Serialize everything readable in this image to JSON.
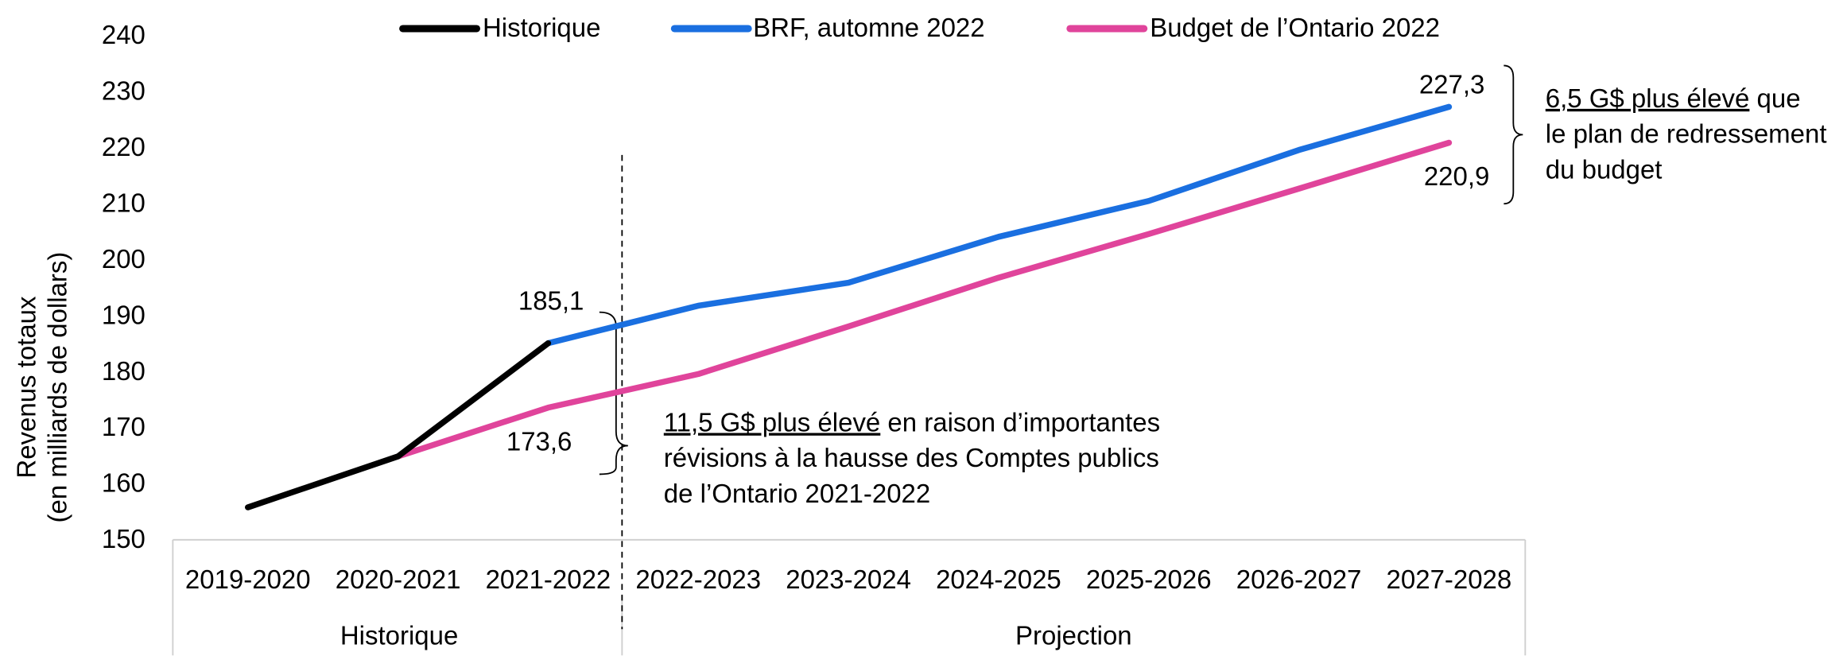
{
  "chart_data": {
    "type": "line",
    "categories": [
      "2019-2020",
      "2020-2021",
      "2021-2022",
      "2022-2023",
      "2023-2024",
      "2024-2025",
      "2025-2026",
      "2026-2027",
      "2027-2028"
    ],
    "category_groups": [
      "Historique",
      "Projection"
    ],
    "y_label": [
      "Revenus totaux",
      "(en milliards de dollars)"
    ],
    "ylim": [
      150,
      240
    ],
    "yticks": [
      150,
      160,
      170,
      180,
      190,
      200,
      210,
      220,
      230,
      240
    ],
    "series": [
      {
        "name": "Historique",
        "color": "#000000",
        "values": [
          155.8,
          164.9,
          185.1,
          null,
          null,
          null,
          null,
          null,
          null
        ]
      },
      {
        "name": "BRF, automne 2022",
        "color": "#1a6fe0",
        "values": [
          null,
          null,
          185.1,
          191.8,
          195.9,
          204.1,
          210.5,
          219.6,
          227.3
        ],
        "value_labels": [
          null,
          null,
          "185,1",
          null,
          null,
          null,
          null,
          null,
          "227,3"
        ]
      },
      {
        "name": "Budget de l’Ontario 2022",
        "color": "#e0449b",
        "values": [
          null,
          164.9,
          173.6,
          179.6,
          188.1,
          196.8,
          204.6,
          212.7,
          220.9
        ],
        "value_labels": [
          null,
          null,
          "173,6",
          null,
          null,
          null,
          null,
          null,
          "220,9"
        ]
      }
    ],
    "annotations": [
      {
        "underlined": "6,5 G$ plus élevé",
        "lines": [
          " que",
          "le plan de redressement",
          "du budget"
        ]
      },
      {
        "underlined": "11,5 G$ plus élevé",
        "lines": [
          " en raison d’importantes",
          "révisions à la hausse des Comptes publics",
          "de l’Ontario 2021-2022"
        ]
      }
    ],
    "legend": "top"
  }
}
